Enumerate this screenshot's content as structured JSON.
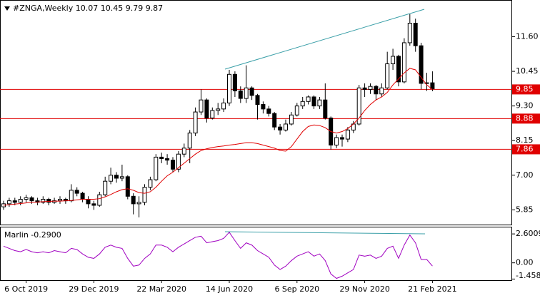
{
  "chart_data": [
    {
      "type": "candlestick",
      "title": "#ZNGA,Weekly  10.07 10.45 9.79 9.87",
      "categories": [
        null,
        null,
        null,
        null,
        "6 Oct 2019",
        null,
        null,
        null,
        null,
        null,
        null,
        null,
        null,
        null,
        null,
        null,
        "29 Dec 2019",
        null,
        null,
        null,
        null,
        null,
        null,
        null,
        null,
        null,
        null,
        null,
        "22 Mar 2020",
        null,
        null,
        null,
        null,
        null,
        null,
        null,
        null,
        null,
        null,
        null,
        "14 Jun 2020",
        null,
        null,
        null,
        null,
        null,
        null,
        null,
        null,
        null,
        null,
        null,
        "6 Sep 2020",
        null,
        null,
        null,
        null,
        null,
        null,
        null,
        null,
        null,
        null,
        null,
        "29 Nov 2020",
        null,
        null,
        null,
        null,
        null,
        null,
        null,
        null,
        null,
        null,
        null,
        "21 Feb 2021"
      ],
      "open": [
        5.95,
        6.05,
        6.15,
        6.1,
        6.2,
        6.25,
        6.15,
        6.1,
        6.2,
        6.1,
        6.15,
        6.2,
        6.15,
        6.5,
        6.4,
        6.2,
        6.05,
        6.0,
        6.35,
        6.8,
        7.0,
        6.9,
        6.95,
        6.3,
        6.05,
        6.1,
        6.6,
        6.85,
        7.6,
        7.55,
        7.5,
        7.2,
        7.7,
        7.9,
        8.4,
        9.1,
        9.5,
        8.9,
        9.15,
        9.2,
        9.4,
        10.35,
        9.8,
        9.55,
        9.9,
        9.65,
        9.35,
        9.2,
        9.05,
        8.6,
        8.5,
        8.7,
        9.0,
        9.3,
        9.45,
        9.6,
        9.3,
        9.5,
        8.9,
        8.0,
        8.25,
        8.2,
        8.5,
        8.7,
        9.9,
        9.85,
        9.95,
        9.7,
        9.9,
        10.7,
        10.95,
        10.1,
        11.4,
        12.05,
        11.3,
        10.05,
        10.07
      ],
      "high": [
        6.15,
        6.25,
        6.25,
        6.3,
        6.35,
        6.3,
        6.25,
        6.3,
        6.25,
        6.25,
        6.3,
        6.25,
        6.7,
        6.6,
        6.45,
        6.3,
        6.15,
        6.45,
        6.95,
        7.25,
        7.1,
        7.35,
        7.0,
        6.4,
        6.3,
        6.7,
        6.95,
        7.7,
        7.75,
        7.7,
        7.6,
        7.8,
        8.05,
        8.5,
        9.25,
        9.85,
        9.55,
        9.25,
        9.4,
        9.55,
        10.5,
        10.45,
        9.95,
        10.65,
        9.95,
        9.7,
        9.45,
        9.3,
        9.1,
        8.7,
        8.85,
        9.1,
        9.4,
        9.6,
        9.65,
        9.65,
        9.6,
        10.05,
        8.95,
        8.35,
        8.35,
        8.6,
        8.8,
        10.0,
        10.05,
        10.05,
        10.0,
        10.05,
        11.1,
        11.2,
        11.0,
        11.55,
        12.35,
        12.2,
        11.4,
        10.4,
        10.45
      ],
      "low": [
        5.85,
        5.95,
        6.0,
        6.0,
        6.1,
        6.05,
        6.0,
        6.05,
        6.0,
        6.05,
        6.05,
        6.05,
        6.1,
        6.3,
        6.1,
        5.9,
        5.85,
        5.95,
        6.3,
        6.7,
        6.75,
        6.8,
        6.2,
        5.7,
        5.6,
        6.0,
        6.5,
        6.8,
        7.4,
        7.35,
        7.1,
        7.1,
        7.6,
        7.4,
        8.3,
        9.0,
        8.75,
        8.85,
        9.0,
        9.1,
        9.3,
        9.6,
        9.4,
        9.4,
        9.5,
        8.85,
        9.05,
        8.95,
        8.5,
        8.35,
        8.45,
        8.65,
        8.95,
        9.2,
        9.35,
        9.2,
        9.2,
        8.85,
        7.85,
        7.9,
        7.95,
        8.1,
        8.4,
        8.65,
        9.6,
        9.7,
        9.5,
        9.6,
        9.85,
        10.5,
        9.95,
        10.05,
        11.3,
        11.1,
        9.85,
        9.8,
        9.79
      ],
      "close": [
        6.05,
        6.15,
        6.1,
        6.2,
        6.25,
        6.15,
        6.1,
        6.2,
        6.1,
        6.15,
        6.2,
        6.15,
        6.5,
        6.4,
        6.2,
        6.05,
        6.0,
        6.35,
        6.8,
        7.0,
        6.9,
        6.95,
        6.3,
        6.05,
        6.1,
        6.6,
        6.85,
        7.6,
        7.55,
        7.5,
        7.2,
        7.7,
        7.9,
        8.4,
        9.1,
        9.5,
        8.9,
        9.15,
        9.2,
        9.4,
        10.35,
        9.8,
        9.55,
        9.9,
        9.65,
        9.35,
        9.2,
        9.05,
        8.6,
        8.5,
        8.7,
        9.0,
        9.3,
        9.45,
        9.6,
        9.3,
        9.5,
        8.9,
        8.0,
        8.25,
        8.2,
        8.5,
        8.7,
        9.9,
        9.85,
        9.95,
        9.7,
        9.9,
        10.7,
        10.95,
        10.1,
        11.4,
        12.05,
        11.3,
        10.05,
        10.07,
        9.87
      ],
      "ma_values": [
        6.0,
        6.02,
        6.04,
        6.06,
        6.08,
        6.1,
        6.11,
        6.12,
        6.13,
        6.14,
        6.14,
        6.15,
        6.16,
        6.18,
        6.2,
        6.2,
        6.2,
        6.22,
        6.28,
        6.36,
        6.45,
        6.52,
        6.55,
        6.5,
        6.42,
        6.4,
        6.45,
        6.6,
        6.8,
        6.98,
        7.1,
        7.25,
        7.4,
        7.55,
        7.7,
        7.82,
        7.88,
        7.92,
        7.95,
        7.97,
        8.0,
        8.02,
        8.05,
        8.08,
        8.08,
        8.05,
        8.0,
        7.95,
        7.9,
        7.82,
        7.8,
        7.95,
        8.2,
        8.45,
        8.62,
        8.67,
        8.65,
        8.58,
        8.45,
        8.4,
        8.45,
        8.55,
        8.7,
        8.9,
        9.15,
        9.35,
        9.5,
        9.6,
        9.75,
        10.0,
        10.2,
        10.4,
        10.55,
        10.5,
        10.25,
        10.0,
        9.85
      ],
      "ma_color": "#e00000",
      "levels": [
        9.85,
        8.88,
        7.86
      ],
      "level_color": "#e00000",
      "ylim": [
        5.36,
        12.82
      ],
      "yticks": [
        {
          "value": 11.6,
          "label": "11.60"
        },
        10.45,
        {
          "value": 9.3,
          "label": "9.30"
        },
        8.15,
        {
          "value": 7,
          "label": "7.00"
        },
        5.85
      ]
    },
    {
      "type": "line",
      "title": "Marlin -0.2900",
      "color": "#a000c0",
      "values": [
        1.5,
        1.3,
        1.1,
        1.0,
        1.2,
        1.0,
        0.9,
        1.0,
        0.9,
        1.1,
        1.0,
        0.9,
        1.3,
        1.2,
        0.8,
        0.5,
        0.4,
        0.8,
        1.4,
        1.6,
        1.4,
        1.3,
        0.4,
        -0.3,
        -0.2,
        0.4,
        0.8,
        1.6,
        1.6,
        1.4,
        1.0,
        1.4,
        1.7,
        2.0,
        2.3,
        2.4,
        1.8,
        1.9,
        2.0,
        2.2,
        2.75,
        2.0,
        1.3,
        1.8,
        1.6,
        1.1,
        0.8,
        0.5,
        -0.2,
        -0.6,
        -0.3,
        0.2,
        0.6,
        0.8,
        1.0,
        0.6,
        0.8,
        0.2,
        -1.0,
        -1.4,
        -1.2,
        -0.9,
        -0.6,
        0.7,
        0.6,
        0.7,
        0.4,
        0.6,
        1.3,
        1.5,
        0.4,
        1.6,
        2.5,
        1.8,
        0.3,
        0.3,
        -0.29
      ],
      "ylim": [
        -1.56,
        3.25
      ],
      "yticks": [
        2.6009,
        {
          "value": 0,
          "label": "0.00"
        },
        {
          "value": -1.458,
          "label": "-1.4580"
        }
      ]
    }
  ]
}
